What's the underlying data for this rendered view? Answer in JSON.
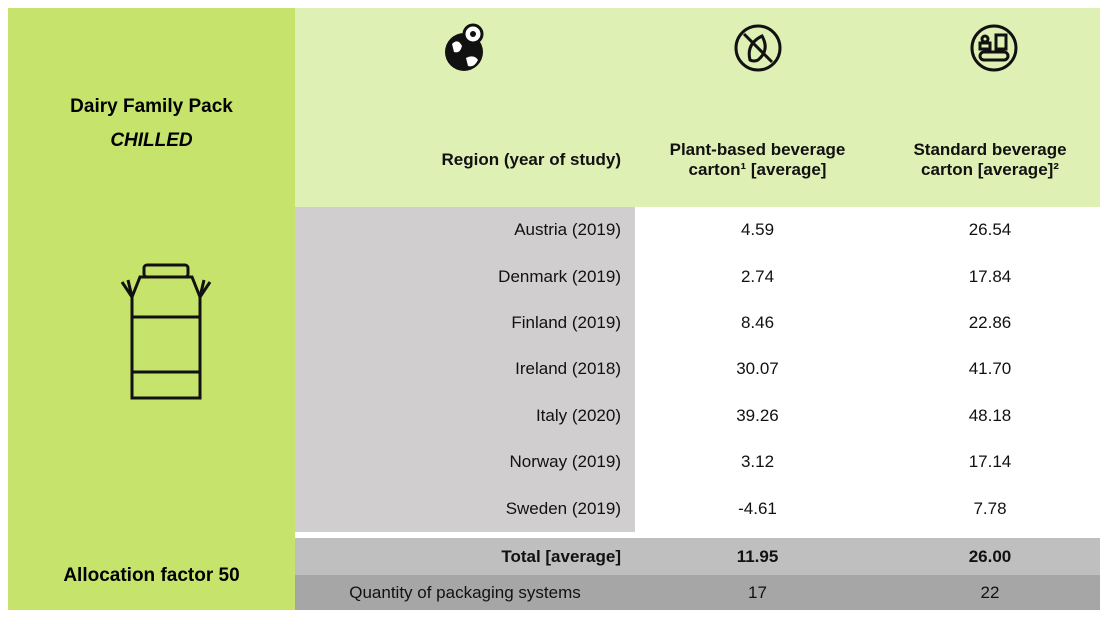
{
  "sidebar": {
    "title": "Dairy Family Pack",
    "subtitle": "CHILLED",
    "footer": "Allocation factor 50"
  },
  "table": {
    "headers": [
      "Region (year of study)",
      "Plant-based beverage carton¹ [average]",
      "Standard beverage carton [average]²"
    ],
    "rows": [
      [
        "Austria (2019)",
        "4.59",
        "26.54"
      ],
      [
        "Denmark (2019)",
        "2.74",
        "17.84"
      ],
      [
        "Finland (2019)",
        "8.46",
        "22.86"
      ],
      [
        "Ireland (2018)",
        "30.07",
        "41.70"
      ],
      [
        "Italy (2020)",
        "39.26",
        "48.18"
      ],
      [
        "Norway (2019)",
        "3.12",
        "17.14"
      ],
      [
        "Sweden (2019)",
        "-4.61",
        "7.78"
      ]
    ],
    "total": [
      "Total [average]",
      "11.95",
      "26.00"
    ],
    "quantity": [
      "Quantity of packaging systems",
      "17",
      "22"
    ]
  }
}
